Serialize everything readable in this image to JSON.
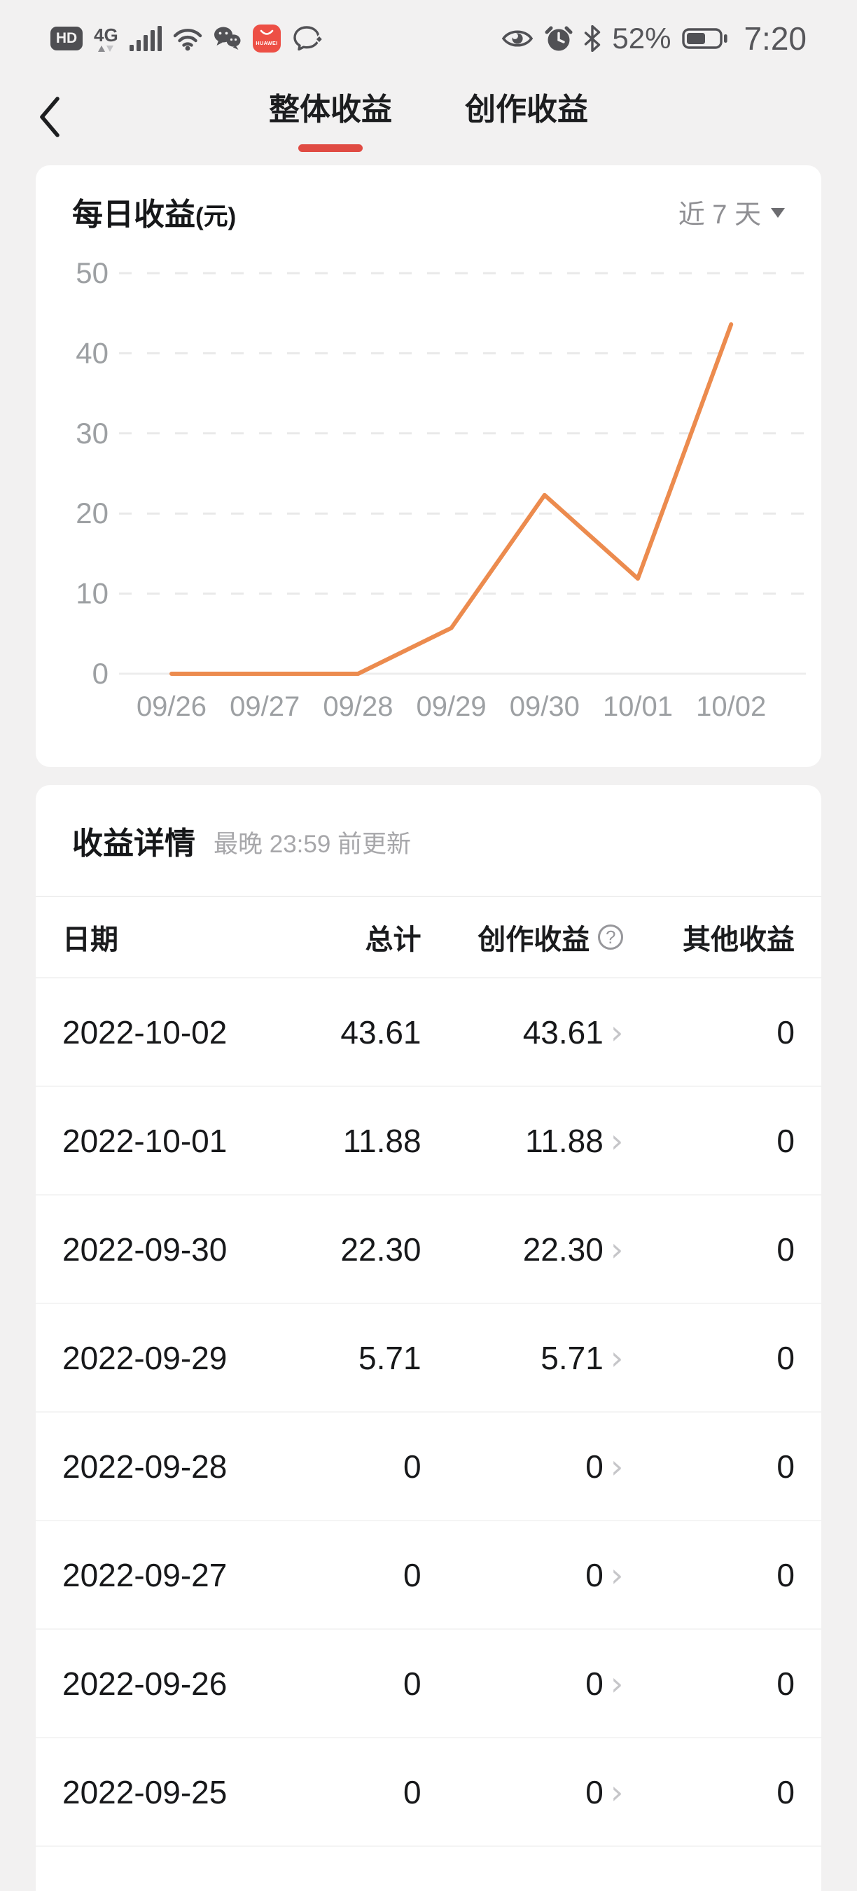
{
  "status_bar": {
    "left_icons": [
      "hd-badge",
      "4g-network",
      "signal-bars",
      "wifi-icon",
      "wechat-icon",
      "huawei-appgallery-icon",
      "messenger-sparkle-icon"
    ],
    "network_label": "4G",
    "hd_label": "HD",
    "right_icons": [
      "eye-comfort-icon",
      "alarm-icon",
      "bluetooth-icon",
      "battery-icon"
    ],
    "battery_percent": "52%",
    "time": "7:20"
  },
  "nav": {
    "tabs": [
      {
        "label": "整体收益",
        "active": true
      },
      {
        "label": "创作收益",
        "active": false
      }
    ]
  },
  "chart_card": {
    "title": "每日收益",
    "title_unit": "(元)",
    "range_label": "近 7 天"
  },
  "chart_data": {
    "type": "line",
    "title": "每日收益(元)",
    "x": [
      "09/26",
      "09/27",
      "09/28",
      "09/29",
      "09/30",
      "10/01",
      "10/02"
    ],
    "series": [
      {
        "name": "每日收益",
        "values": [
          0,
          0,
          0,
          5.71,
          22.3,
          11.88,
          43.61
        ]
      }
    ],
    "ylim": [
      0,
      50
    ],
    "yticks": [
      0,
      10,
      20,
      30,
      40,
      50
    ],
    "grid": "horizontal-dashed",
    "legend_position": "none",
    "line_color": "#ec8b4e",
    "axis_color": "#9da0a3",
    "grid_color": "#e9e9e9",
    "zero_line_color": "#ededed"
  },
  "details": {
    "title": "收益详情",
    "subtitle": "最晚 23:59 前更新",
    "columns": {
      "date": "日期",
      "total": "总计",
      "creation": "创作收益",
      "other": "其他收益"
    },
    "help_symbol": "?",
    "row_chevron": "›",
    "rows": [
      {
        "date": "2022-10-02",
        "total": "43.61",
        "creation": "43.61",
        "other": "0"
      },
      {
        "date": "2022-10-01",
        "total": "11.88",
        "creation": "11.88",
        "other": "0"
      },
      {
        "date": "2022-09-30",
        "total": "22.30",
        "creation": "22.30",
        "other": "0"
      },
      {
        "date": "2022-09-29",
        "total": "5.71",
        "creation": "5.71",
        "other": "0"
      },
      {
        "date": "2022-09-28",
        "total": "0",
        "creation": "0",
        "other": "0"
      },
      {
        "date": "2022-09-27",
        "total": "0",
        "creation": "0",
        "other": "0"
      },
      {
        "date": "2022-09-26",
        "total": "0",
        "creation": "0",
        "other": "0"
      },
      {
        "date": "2022-09-25",
        "total": "0",
        "creation": "0",
        "other": "0"
      }
    ]
  },
  "colors": {
    "accent_red": "#e04b43",
    "line_orange": "#ec8b4e",
    "page_bg": "#f2f1f1",
    "card_bg": "#ffffff",
    "text_dark": "#17181a",
    "text_gray": "#9da0a3"
  }
}
